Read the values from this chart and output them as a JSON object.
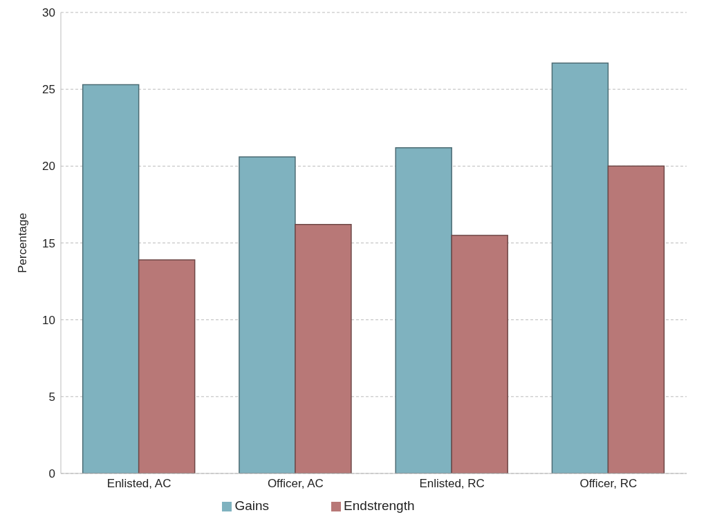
{
  "chart_data": {
    "type": "bar",
    "ylabel": "Percentage",
    "categories": [
      "Enlisted, AC",
      "Officer, AC",
      "Enlisted, RC",
      "Officer, RC"
    ],
    "series": [
      {
        "name": "Gains",
        "color": "#7fb2bf",
        "values": [
          25.3,
          20.6,
          21.2,
          26.7
        ]
      },
      {
        "name": "Endstrength",
        "color": "#b87877",
        "values": [
          13.9,
          16.2,
          15.5,
          20.0
        ]
      }
    ],
    "ylim": [
      0,
      30
    ],
    "yticks": [
      0,
      5,
      10,
      15,
      20,
      25,
      30
    ],
    "grid": "y",
    "legend": "bottom"
  }
}
